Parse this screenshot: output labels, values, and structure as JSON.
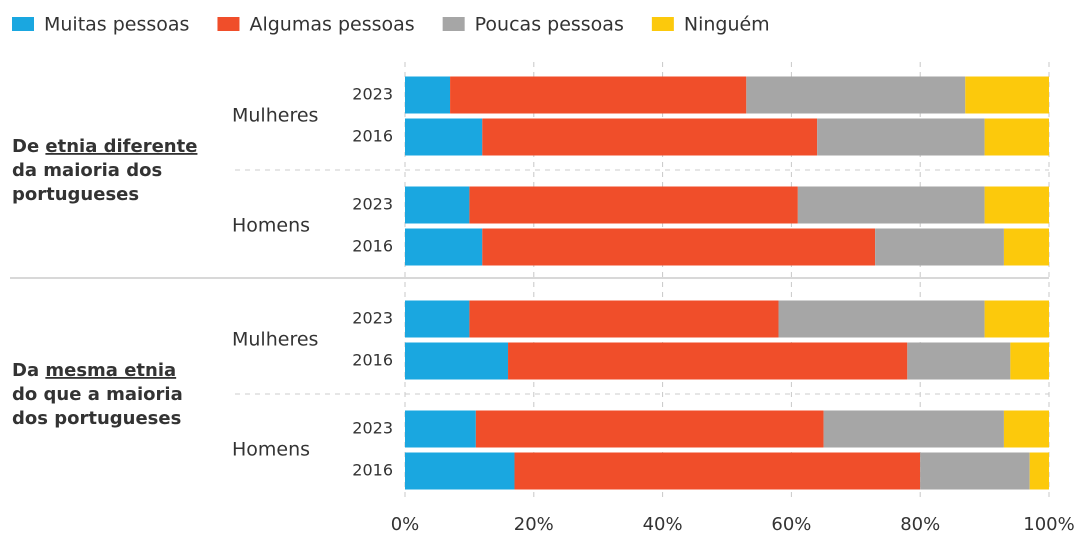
{
  "chart_data": {
    "type": "bar",
    "orientation": "horizontal",
    "stacked": true,
    "categories": [
      "2023",
      "2016",
      "2023",
      "2016",
      "2023",
      "2016",
      "2023",
      "2016"
    ],
    "groups": [
      {
        "label": [
          [
            {
              "text": "De "
            },
            {
              "text": "etnia diferente",
              "underline": true
            }
          ],
          [
            {
              "text": "da maioria dos"
            }
          ],
          [
            {
              "text": "portugueses"
            }
          ]
        ],
        "subgroups": [
          "Mulheres",
          "Homens"
        ]
      },
      {
        "label": [
          [
            {
              "text": "Da "
            },
            {
              "text": "mesma etnia",
              "underline": true
            }
          ],
          [
            {
              "text": "do que a maioria"
            }
          ],
          [
            {
              "text": "dos portugueses"
            }
          ]
        ],
        "subgroups": [
          "Mulheres",
          "Homens"
        ]
      }
    ],
    "series": [
      {
        "name": "Muitas pessoas",
        "color": "#1aa7e0",
        "values": [
          7,
          12,
          10,
          12,
          10,
          16,
          11,
          17
        ]
      },
      {
        "name": "Algumas pessoas",
        "color": "#f04e2a",
        "values": [
          46,
          52,
          51,
          61,
          48,
          62,
          54,
          63
        ]
      },
      {
        "name": "Poucas pessoas",
        "color": "#a6a6a6",
        "values": [
          34,
          26,
          29,
          20,
          32,
          16,
          28,
          17
        ]
      },
      {
        "name": "Ninguém",
        "color": "#fcc90c",
        "values": [
          13,
          10,
          10,
          7,
          10,
          6,
          7,
          3
        ]
      }
    ],
    "xlim": [
      0,
      100
    ],
    "xticks": [
      {
        "value": 0,
        "label": "0%"
      },
      {
        "value": 20,
        "label": "20%"
      },
      {
        "value": 40,
        "label": "40%"
      },
      {
        "value": 60,
        "label": "60%"
      },
      {
        "value": 80,
        "label": "80%"
      },
      {
        "value": 100,
        "label": "100%"
      }
    ],
    "grid": true,
    "legend": "top"
  }
}
